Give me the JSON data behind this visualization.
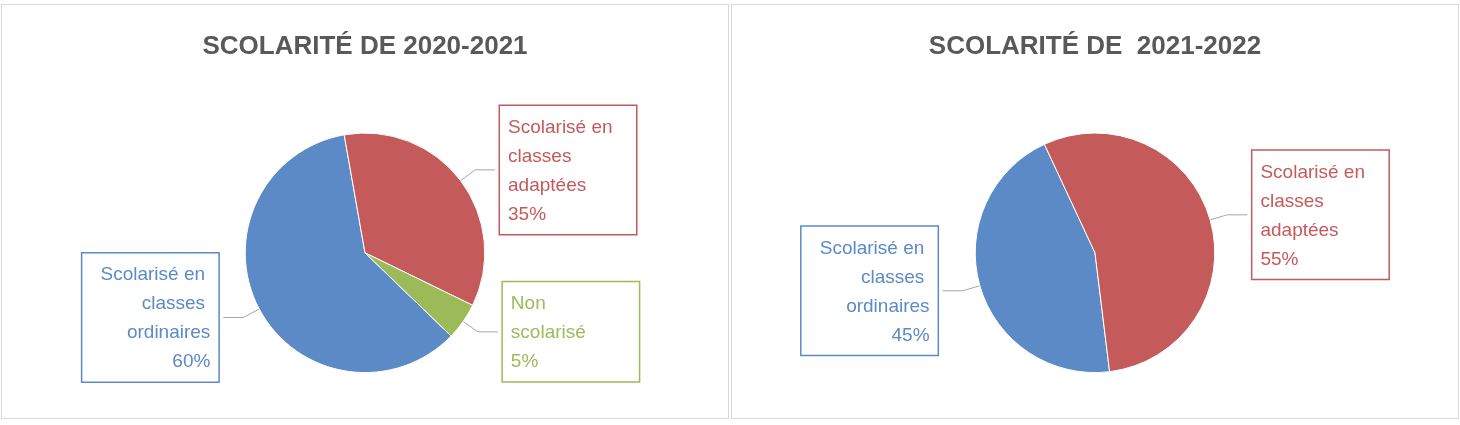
{
  "chart_data": [
    {
      "type": "pie",
      "title": "SCOLARITÉ DE 2020-2021",
      "categories": [
        "Scolarisé en classes ordinaires",
        "Scolarisé en classes adaptées",
        "Non scolarisé"
      ],
      "values": [
        60,
        35,
        5
      ],
      "value_labels": [
        "60%",
        "35%",
        "5%"
      ],
      "colors": [
        "#5b8ac6",
        "#c55a5a",
        "#9bbb59"
      ],
      "legend": false
    },
    {
      "type": "pie",
      "title": "SCOLARITÉ DE  2021-2022",
      "categories": [
        "Scolarisé en classes ordinaires",
        "Scolarisé en classes adaptées"
      ],
      "values": [
        45,
        55
      ],
      "value_labels": [
        "45%",
        "55%"
      ],
      "colors": [
        "#5b8ac6",
        "#c55a5a"
      ],
      "legend": false
    }
  ]
}
